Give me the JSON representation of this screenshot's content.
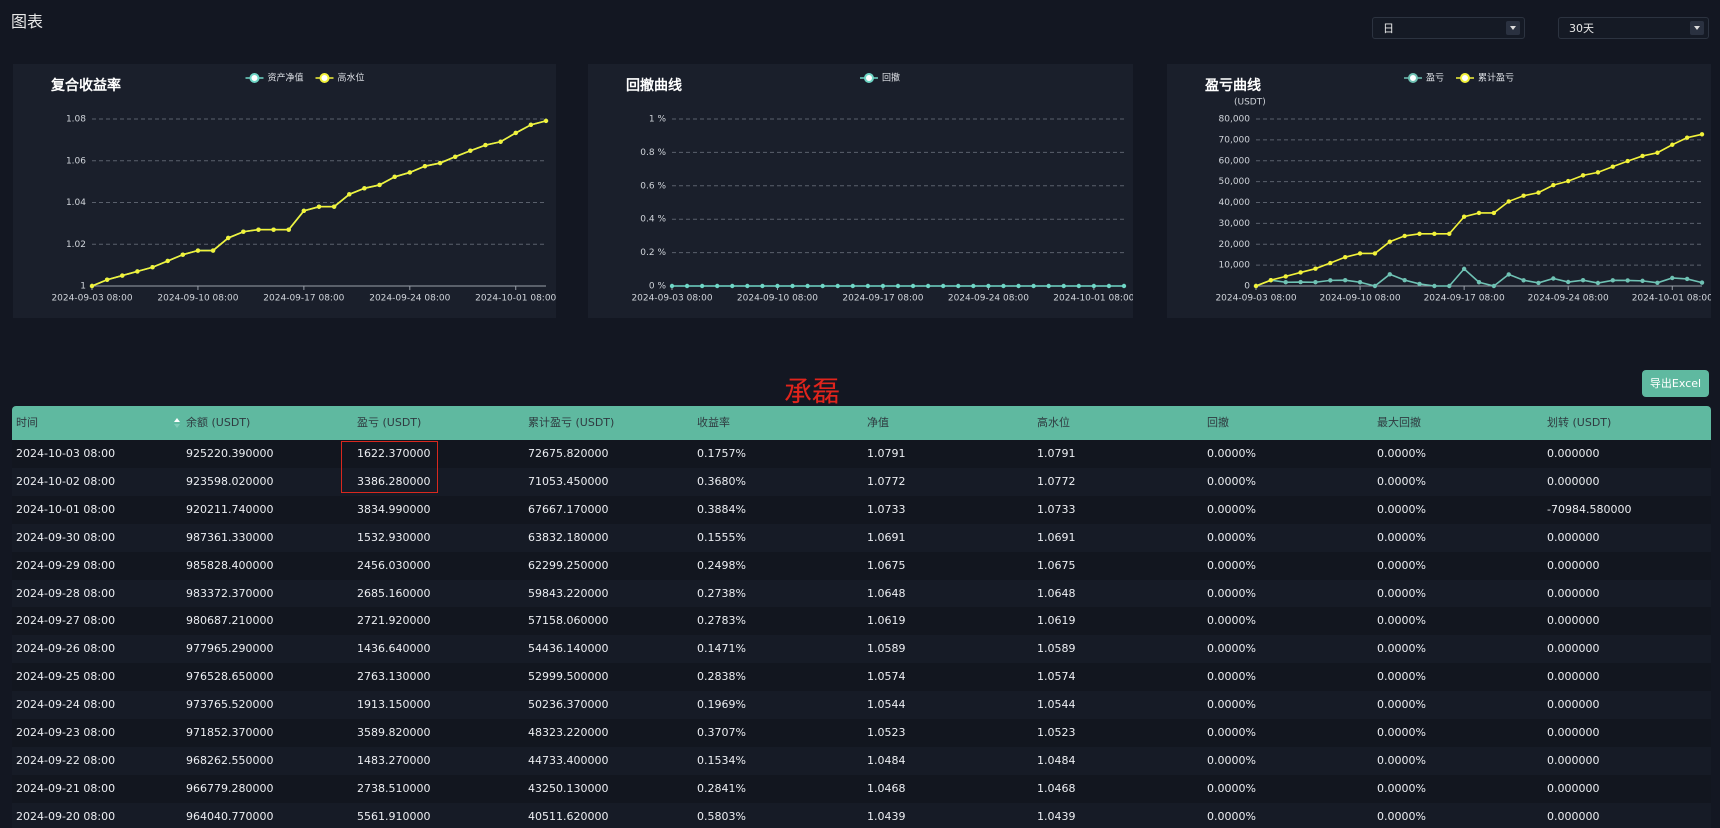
{
  "header": {
    "title": "图表"
  },
  "controls": {
    "period": "日",
    "range": "30天",
    "export": "导出Excel"
  },
  "watermark": "承磊",
  "chart_data": [
    {
      "type": "line",
      "title": "复合收益率",
      "legend": "top",
      "grid": true,
      "categories": [
        "2024-09-03 08:00",
        null,
        null,
        null,
        null,
        null,
        null,
        "2024-09-10 08:00",
        null,
        null,
        null,
        null,
        null,
        null,
        "2024-09-17 08:00",
        null,
        null,
        null,
        null,
        null,
        null,
        "2024-09-24 08:00",
        null,
        null,
        null,
        null,
        null,
        null,
        "2024-10-01 08:00",
        null,
        null
      ],
      "series": [
        {
          "name": "资产净值",
          "color": "#6fd6c6",
          "values": [
            1,
            1.003,
            1.005,
            1.007,
            1.009,
            1.012,
            1.015,
            1.017,
            1.017,
            1.023,
            1.026,
            1.027,
            1.027,
            1.027,
            1.036,
            1.038,
            1.038,
            1.0439,
            1.0468,
            1.0484,
            1.0523,
            1.0544,
            1.0574,
            1.0589,
            1.0619,
            1.0648,
            1.0675,
            1.0691,
            1.0733,
            1.0772,
            1.0791
          ]
        },
        {
          "name": "高水位",
          "color": "#f2f23a",
          "values": [
            1,
            1.003,
            1.005,
            1.007,
            1.009,
            1.012,
            1.015,
            1.017,
            1.017,
            1.023,
            1.026,
            1.027,
            1.027,
            1.027,
            1.036,
            1.038,
            1.038,
            1.0439,
            1.0468,
            1.0484,
            1.0523,
            1.0544,
            1.0574,
            1.0589,
            1.0619,
            1.0648,
            1.0675,
            1.0691,
            1.0733,
            1.0772,
            1.0791
          ]
        }
      ],
      "ylim": [
        1,
        1.08
      ],
      "yticks": [
        1,
        1.02,
        1.04,
        1.06,
        1.08
      ]
    },
    {
      "type": "line",
      "title": "回撤曲线",
      "legend": "top",
      "grid": true,
      "categories": [
        "2024-09-03 08:00",
        null,
        null,
        null,
        null,
        null,
        null,
        "2024-09-10 08:00",
        null,
        null,
        null,
        null,
        null,
        null,
        "2024-09-17 08:00",
        null,
        null,
        null,
        null,
        null,
        null,
        "2024-09-24 08:00",
        null,
        null,
        null,
        null,
        null,
        null,
        "2024-10-01 08:00",
        null,
        null
      ],
      "series": [
        {
          "name": "回撤",
          "color": "#6fd6c6",
          "values": [
            0,
            0,
            0,
            0,
            0,
            0,
            0,
            0,
            0,
            0,
            0,
            0,
            0,
            0,
            0,
            0,
            0,
            0,
            0,
            0,
            0,
            0,
            0,
            0,
            0,
            0,
            0,
            0,
            0,
            0,
            0
          ]
        }
      ],
      "ylim": [
        0,
        1
      ],
      "yticks": [
        {
          "value": 0,
          "label": "0 %"
        },
        {
          "value": 0.2,
          "label": "0.2 %"
        },
        {
          "value": 0.4,
          "label": "0.4 %"
        },
        {
          "value": 0.6,
          "label": "0.6 %"
        },
        {
          "value": 0.8,
          "label": "0.8 %"
        },
        {
          "value": 1,
          "label": "1 %"
        }
      ]
    },
    {
      "type": "line",
      "title": "盈亏曲线",
      "legend": "top",
      "grid": true,
      "ylabel": "(USDT)",
      "categories": [
        "2024-09-03 08:00",
        null,
        null,
        null,
        null,
        null,
        null,
        "2024-09-10 08:00",
        null,
        null,
        null,
        null,
        null,
        null,
        "2024-09-17 08:00",
        null,
        null,
        null,
        null,
        null,
        null,
        "2024-09-24 08:00",
        null,
        null,
        null,
        null,
        null,
        null,
        "2024-10-01 08:00",
        null,
        null
      ],
      "series": [
        {
          "name": "盈亏",
          "color": "#6fc2b4",
          "values": [
            0,
            2800,
            1800,
            1900,
            1800,
            2700,
            2800,
            1800,
            0,
            5600,
            2800,
            1000,
            0,
            0,
            8200,
            1800,
            0,
            5561.91,
            2738.51,
            1483.27,
            3589.82,
            1913.15,
            2763.13,
            1436.64,
            2721.92,
            2685.16,
            2456.03,
            1532.93,
            3834.99,
            3386.28,
            1622.37
          ]
        },
        {
          "name": "累计盈亏",
          "color": "#f2f23a",
          "values": [
            0,
            2800,
            4600,
            6500,
            8300,
            11000,
            13800,
            15600,
            15600,
            21200,
            24000,
            25000,
            25000,
            25000,
            33200,
            35000,
            35000,
            40511.62,
            43250.13,
            44733.4,
            48323.22,
            50236.37,
            52999.5,
            54436.14,
            57158.06,
            59843.22,
            62299.25,
            63832.18,
            67667.17,
            71053.45,
            72675.82
          ]
        }
      ],
      "ylim": [
        0,
        80000
      ],
      "yticks": [
        0,
        {
          "value": 10000,
          "label": "10,000"
        },
        {
          "value": 20000,
          "label": "20,000"
        },
        {
          "value": 30000,
          "label": "30,000"
        },
        {
          "value": 40000,
          "label": "40,000"
        },
        {
          "value": 50000,
          "label": "50,000"
        },
        {
          "value": 60000,
          "label": "60,000"
        },
        {
          "value": 70000,
          "label": "70,000"
        },
        {
          "value": 80000,
          "label": "80,000"
        }
      ]
    }
  ],
  "table": {
    "columns": [
      "时间",
      "余额 (USDT)",
      "盈亏 (USDT)",
      "累计盈亏 (USDT)",
      "收益率",
      "净值",
      "高水位",
      "回撤",
      "最大回撤",
      "划转 (USDT)"
    ],
    "rows": [
      [
        "2024-10-03 08:00",
        "925220.390000",
        "1622.370000",
        "72675.820000",
        "0.1757%",
        "1.0791",
        "1.0791",
        "0.0000%",
        "0.0000%",
        "0.000000"
      ],
      [
        "2024-10-02 08:00",
        "923598.020000",
        "3386.280000",
        "71053.450000",
        "0.3680%",
        "1.0772",
        "1.0772",
        "0.0000%",
        "0.0000%",
        "0.000000"
      ],
      [
        "2024-10-01 08:00",
        "920211.740000",
        "3834.990000",
        "67667.170000",
        "0.3884%",
        "1.0733",
        "1.0733",
        "0.0000%",
        "0.0000%",
        "-70984.580000"
      ],
      [
        "2024-09-30 08:00",
        "987361.330000",
        "1532.930000",
        "63832.180000",
        "0.1555%",
        "1.0691",
        "1.0691",
        "0.0000%",
        "0.0000%",
        "0.000000"
      ],
      [
        "2024-09-29 08:00",
        "985828.400000",
        "2456.030000",
        "62299.250000",
        "0.2498%",
        "1.0675",
        "1.0675",
        "0.0000%",
        "0.0000%",
        "0.000000"
      ],
      [
        "2024-09-28 08:00",
        "983372.370000",
        "2685.160000",
        "59843.220000",
        "0.2738%",
        "1.0648",
        "1.0648",
        "0.0000%",
        "0.0000%",
        "0.000000"
      ],
      [
        "2024-09-27 08:00",
        "980687.210000",
        "2721.920000",
        "57158.060000",
        "0.2783%",
        "1.0619",
        "1.0619",
        "0.0000%",
        "0.0000%",
        "0.000000"
      ],
      [
        "2024-09-26 08:00",
        "977965.290000",
        "1436.640000",
        "54436.140000",
        "0.1471%",
        "1.0589",
        "1.0589",
        "0.0000%",
        "0.0000%",
        "0.000000"
      ],
      [
        "2024-09-25 08:00",
        "976528.650000",
        "2763.130000",
        "52999.500000",
        "0.2838%",
        "1.0574",
        "1.0574",
        "0.0000%",
        "0.0000%",
        "0.000000"
      ],
      [
        "2024-09-24 08:00",
        "973765.520000",
        "1913.150000",
        "50236.370000",
        "0.1969%",
        "1.0544",
        "1.0544",
        "0.0000%",
        "0.0000%",
        "0.000000"
      ],
      [
        "2024-09-23 08:00",
        "971852.370000",
        "3589.820000",
        "48323.220000",
        "0.3707%",
        "1.0523",
        "1.0523",
        "0.0000%",
        "0.0000%",
        "0.000000"
      ],
      [
        "2024-09-22 08:00",
        "968262.550000",
        "1483.270000",
        "44733.400000",
        "0.1534%",
        "1.0484",
        "1.0484",
        "0.0000%",
        "0.0000%",
        "0.000000"
      ],
      [
        "2024-09-21 08:00",
        "966779.280000",
        "2738.510000",
        "43250.130000",
        "0.2841%",
        "1.0468",
        "1.0468",
        "0.0000%",
        "0.0000%",
        "0.000000"
      ],
      [
        "2024-09-20 08:00",
        "964040.770000",
        "5561.910000",
        "40511.620000",
        "0.5803%",
        "1.0439",
        "1.0439",
        "0.0000%",
        "0.0000%",
        "0.000000"
      ]
    ]
  }
}
